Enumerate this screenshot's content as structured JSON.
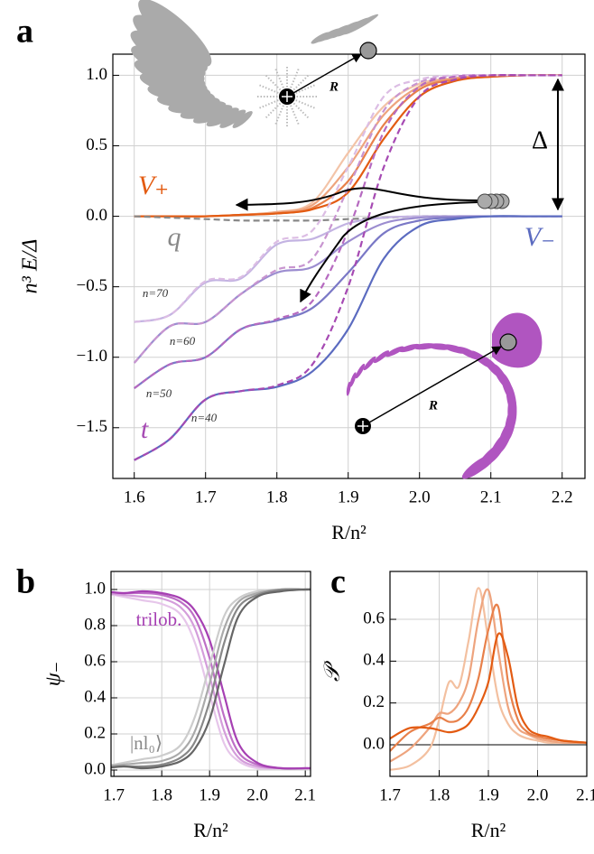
{
  "chart_data": [
    {
      "type": "line",
      "panel_label": "a",
      "xlabel": "R/n²",
      "ylabel": "n³ E/Δ",
      "xlim": [
        1.57,
        2.232
      ],
      "ylim": [
        -1.86,
        1.15
      ],
      "xticks": [
        1.6,
        1.7,
        1.8,
        1.9,
        {
          "value": 2.0,
          "label": "2.0"
        },
        2.1,
        2.2
      ],
      "yticks": [
        {
          "value": 1.0,
          "label": "1.0"
        },
        0.5,
        {
          "value": 0.0,
          "label": "0.0"
        },
        {
          "value": -0.5,
          "label": "−0.5"
        },
        {
          "value": -1.0,
          "label": "−1.0"
        },
        {
          "value": -1.5,
          "label": "−1.5"
        }
      ],
      "grid": true,
      "annotations": [
        "V₊",
        "V₋",
        "q",
        "t",
        "Δ",
        "n=70",
        "n=60",
        "n=50",
        "n=40",
        "R",
        "R"
      ],
      "x": [
        1.6,
        1.65,
        1.7,
        1.75,
        1.8,
        1.85,
        1.9,
        1.95,
        2.0,
        2.05,
        2.1,
        2.15,
        2.2
      ],
      "series": [
        {
          "color": "#f3c4a8",
          "dash": false,
          "values": [
            0,
            0,
            0,
            0.01,
            0.03,
            0.1,
            0.45,
            0.78,
            0.94,
            0.98,
            1,
            1,
            1
          ]
        },
        {
          "color": "#eea47e",
          "dash": false,
          "values": [
            0,
            0,
            0,
            0.01,
            0.03,
            0.08,
            0.35,
            0.72,
            0.92,
            0.98,
            1,
            1,
            1
          ]
        },
        {
          "color": "#e8804a",
          "dash": false,
          "values": [
            0,
            0,
            0,
            0.01,
            0.02,
            0.06,
            0.25,
            0.65,
            0.9,
            0.97,
            0.99,
            1,
            1
          ]
        },
        {
          "color": "#e35b12",
          "dash": false,
          "values": [
            0,
            0,
            0,
            0.01,
            0.02,
            0.05,
            0.17,
            0.55,
            0.85,
            0.96,
            0.99,
            1,
            1
          ]
        },
        {
          "color": "#888888",
          "dash": true,
          "values": [
            0,
            -0.01,
            -0.02,
            -0.03,
            -0.03,
            -0.03,
            -0.02,
            -0.01,
            0,
            0,
            0,
            0,
            0
          ]
        },
        {
          "color": "#c3b3e2",
          "dash": false,
          "values": [
            -0.75,
            -0.7,
            -0.47,
            -0.44,
            -0.2,
            -0.16,
            -0.05,
            -0.01,
            0,
            0,
            0,
            0,
            0
          ]
        },
        {
          "color": "#9c8dd0",
          "dash": false,
          "values": [
            -1.04,
            -0.78,
            -0.75,
            -0.55,
            -0.4,
            -0.36,
            -0.18,
            -0.05,
            -0.01,
            0,
            0,
            0,
            0
          ]
        },
        {
          "color": "#7a78c6",
          "dash": false,
          "values": [
            -1.22,
            -1.05,
            -1.0,
            -0.8,
            -0.74,
            -0.65,
            -0.4,
            -0.12,
            -0.03,
            -0.01,
            0,
            0,
            0
          ]
        },
        {
          "color": "#5b6bc0",
          "dash": false,
          "values": [
            -1.73,
            -1.58,
            -1.3,
            -1.24,
            -1.21,
            -1.1,
            -0.8,
            -0.3,
            -0.07,
            -0.02,
            0,
            0,
            0
          ]
        },
        {
          "color": "#dcbde4",
          "dash": true,
          "values": [
            -0.75,
            -0.7,
            -0.46,
            -0.43,
            -0.18,
            -0.1,
            0.35,
            0.85,
            0.97,
            1,
            1,
            1,
            1
          ]
        },
        {
          "color": "#c895d0",
          "dash": true,
          "values": [
            -1.04,
            -0.78,
            -0.75,
            -0.55,
            -0.38,
            -0.3,
            0.2,
            0.75,
            0.95,
            0.99,
            1,
            1,
            1
          ]
        },
        {
          "color": "#b66ac0",
          "dash": true,
          "values": [
            -1.22,
            -1.05,
            -1.0,
            -0.8,
            -0.73,
            -0.6,
            -0.1,
            0.6,
            0.92,
            0.99,
            1,
            1,
            1
          ]
        },
        {
          "color": "#a64ab3",
          "dash": true,
          "values": [
            -1.73,
            -1.58,
            -1.3,
            -1.24,
            -1.2,
            -1.05,
            -0.5,
            0.35,
            0.85,
            0.97,
            1,
            1,
            1
          ]
        }
      ]
    },
    {
      "type": "line",
      "panel_label": "b",
      "xlabel": "R/n²",
      "ylabel": "ψ₋",
      "xlim": [
        1.694,
        2.111
      ],
      "ylim": [
        -0.035,
        1.1
      ],
      "xticks": [
        1.7,
        1.8,
        1.9,
        {
          "value": 2.0,
          "label": "2.0"
        },
        2.1
      ],
      "yticks": [
        {
          "value": 0.0,
          "label": "0.0"
        },
        0.2,
        0.4,
        0.6,
        0.8,
        {
          "value": 1.0,
          "label": "1.0"
        }
      ],
      "grid": true,
      "annotations": [
        "trilob.",
        "|nl₀⟩"
      ],
      "x": [
        1.68,
        1.72,
        1.76,
        1.8,
        1.84,
        1.87,
        1.9,
        1.93,
        1.96,
        2.0,
        2.05,
        2.1,
        2.12
      ],
      "series": [
        {
          "color": "#e6c6ea",
          "dash": false,
          "values": [
            0.98,
            0.96,
            0.94,
            0.92,
            0.86,
            0.7,
            0.42,
            0.15,
            0.05,
            0.01,
            0.01,
            0.01,
            0.01
          ]
        },
        {
          "color": "#d49ddb",
          "dash": false,
          "values": [
            0.98,
            0.97,
            0.96,
            0.95,
            0.9,
            0.78,
            0.52,
            0.22,
            0.07,
            0.02,
            0.01,
            0.01,
            0.01
          ]
        },
        {
          "color": "#bd6fc6",
          "dash": false,
          "values": [
            0.99,
            0.98,
            0.98,
            0.97,
            0.93,
            0.84,
            0.62,
            0.3,
            0.1,
            0.03,
            0.01,
            0.01,
            0.01
          ]
        },
        {
          "color": "#a640b3",
          "dash": false,
          "values": [
            0.99,
            0.98,
            0.99,
            0.98,
            0.95,
            0.88,
            0.72,
            0.42,
            0.15,
            0.04,
            0.01,
            0.01,
            0.01
          ]
        },
        {
          "color": "#cccccc",
          "dash": false,
          "values": [
            0.02,
            0.04,
            0.06,
            0.08,
            0.14,
            0.3,
            0.58,
            0.85,
            0.95,
            0.99,
            1,
            1,
            1
          ]
        },
        {
          "color": "#aaaaaa",
          "dash": false,
          "values": [
            0.02,
            0.03,
            0.04,
            0.05,
            0.1,
            0.22,
            0.48,
            0.78,
            0.93,
            0.98,
            1,
            1,
            1
          ]
        },
        {
          "color": "#888888",
          "dash": false,
          "values": [
            0.01,
            0.02,
            0.02,
            0.03,
            0.07,
            0.16,
            0.38,
            0.7,
            0.9,
            0.97,
            1,
            1,
            1
          ]
        },
        {
          "color": "#666666",
          "dash": false,
          "values": [
            0.01,
            0.02,
            0.01,
            0.02,
            0.05,
            0.12,
            0.28,
            0.58,
            0.85,
            0.96,
            0.99,
            1,
            1
          ]
        }
      ]
    },
    {
      "type": "line",
      "panel_label": "c",
      "xlabel": "R/n²",
      "ylabel": "𝒫",
      "xlim": [
        1.7,
        2.1
      ],
      "ylim": [
        -0.151,
        0.829
      ],
      "xticks": [
        1.7,
        1.8,
        1.9,
        {
          "value": 2.0,
          "label": "2.0"
        },
        2.1
      ],
      "yticks": [
        {
          "value": 0.0,
          "label": "0.0"
        },
        0.2,
        0.4,
        0.6
      ],
      "grid": true,
      "x": [
        1.7,
        1.74,
        1.78,
        1.8,
        1.82,
        1.84,
        1.86,
        1.88,
        1.9,
        1.92,
        1.94,
        1.96,
        1.98,
        2.0,
        2.02,
        2.05,
        2.1
      ],
      "series": [
        {
          "color": "#f3c0a0",
          "dash": false,
          "values": [
            -0.12,
            -0.1,
            -0.02,
            0.12,
            0.3,
            0.28,
            0.5,
            0.75,
            0.5,
            0.22,
            0.1,
            0.05,
            0.03,
            0.02,
            0.01,
            0.01,
            0.01
          ]
        },
        {
          "color": "#eea47e",
          "dash": false,
          "values": [
            -0.08,
            -0.02,
            0.08,
            0.15,
            0.15,
            0.2,
            0.32,
            0.6,
            0.74,
            0.45,
            0.18,
            0.08,
            0.05,
            0.03,
            0.02,
            0.01,
            0.01
          ]
        },
        {
          "color": "#e8804a",
          "dash": false,
          "values": [
            -0.03,
            0.06,
            0.1,
            0.13,
            0.11,
            0.12,
            0.18,
            0.32,
            0.55,
            0.66,
            0.3,
            0.12,
            0.06,
            0.04,
            0.03,
            0.02,
            0.01
          ]
        },
        {
          "color": "#e35b12",
          "dash": false,
          "values": [
            0.03,
            0.08,
            0.08,
            0.07,
            0.06,
            0.07,
            0.1,
            0.18,
            0.3,
            0.53,
            0.42,
            0.18,
            0.08,
            0.05,
            0.04,
            0.02,
            0.01
          ]
        }
      ]
    }
  ]
}
